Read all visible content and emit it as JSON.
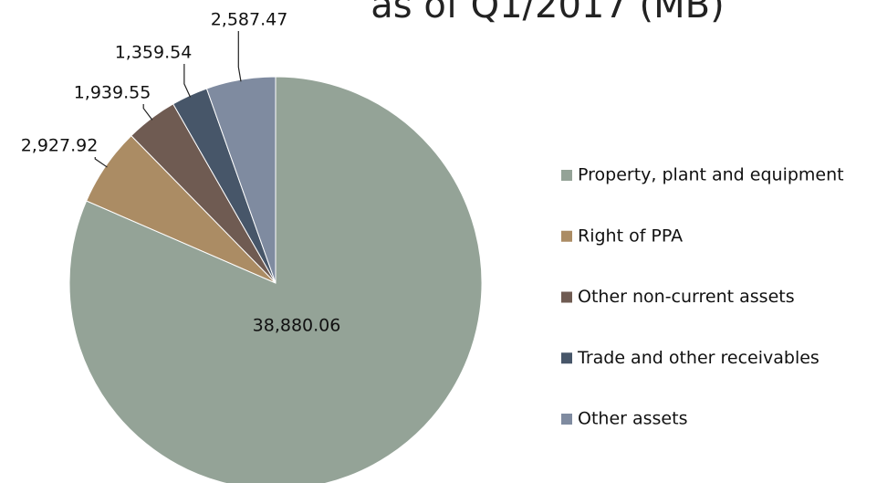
{
  "chart_data": {
    "type": "pie",
    "title": "as of Q1/2017 (MB)",
    "categories": [
      "Property, plant and equipment",
      "Right of PPA",
      "Other non-current assets",
      "Trade and other receivables",
      "Other assets"
    ],
    "values": [
      38880.06,
      2927.92,
      1939.55,
      1359.54,
      2587.47
    ],
    "value_labels": [
      "38,880.06",
      "2,927.92",
      "1,939.55",
      "1,359.54",
      "2,587.47"
    ],
    "colors": [
      "#94a397",
      "#ab8c64",
      "#6f5b52",
      "#475669",
      "#7f8ba0"
    ],
    "legend": "right"
  }
}
